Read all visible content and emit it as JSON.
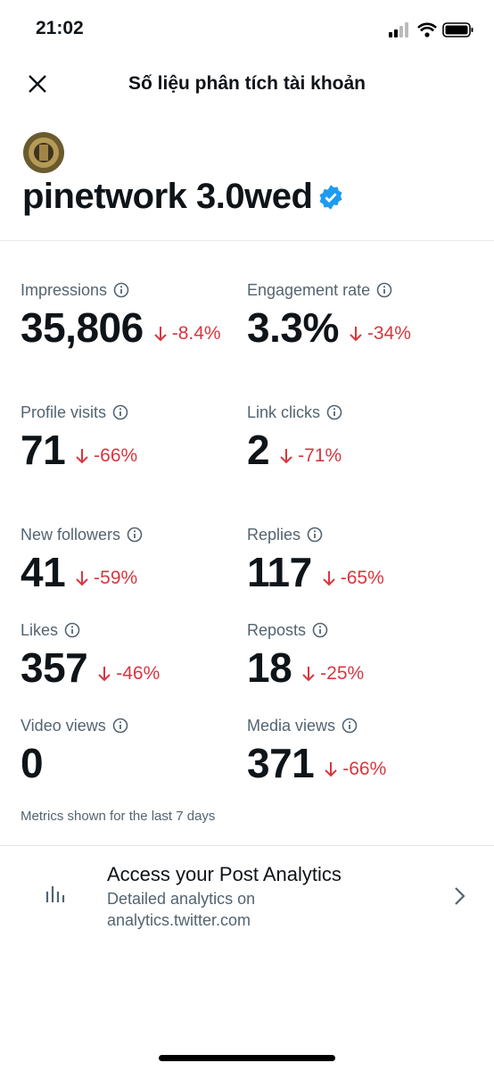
{
  "status_bar": {
    "time": "21:02"
  },
  "header": {
    "title": "Số liệu phân tích tài khoản"
  },
  "account": {
    "name": "pinetwork 3.0wed"
  },
  "metrics": [
    {
      "label": "Impressions",
      "value": "35,806",
      "change": "-8.4%"
    },
    {
      "label": "Engagement rate",
      "value": "3.3%",
      "change": "-34%"
    },
    {
      "label": "Profile visits",
      "value": "71",
      "change": "-66%"
    },
    {
      "label": "Link clicks",
      "value": "2",
      "change": "-71%"
    },
    {
      "label": "New followers",
      "value": "41",
      "change": "-59%"
    },
    {
      "label": "Replies",
      "value": "117",
      "change": "-65%"
    },
    {
      "label": "Likes",
      "value": "357",
      "change": "-46%"
    },
    {
      "label": "Reposts",
      "value": "18",
      "change": "-25%"
    },
    {
      "label": "Video views",
      "value": "0",
      "change": null
    },
    {
      "label": "Media views",
      "value": "371",
      "change": "-66%"
    }
  ],
  "note": "Metrics shown for the last 7 days",
  "promo": {
    "title": "Access your Post Analytics",
    "subtitle_lines": [
      "Detailed analytics on",
      "analytics.twitter.com"
    ]
  }
}
